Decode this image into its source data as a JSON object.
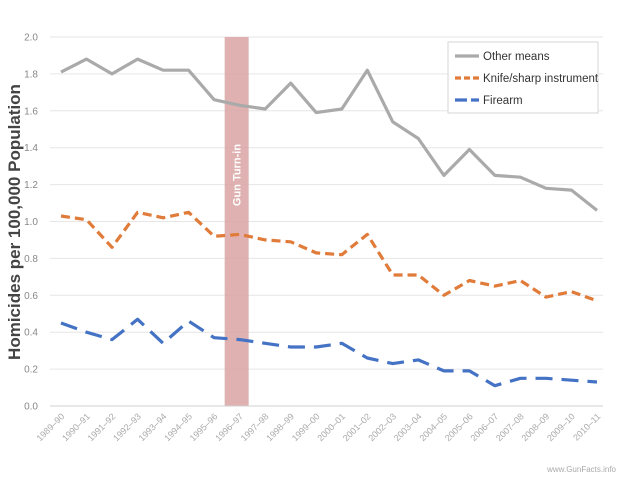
{
  "chart_data": {
    "type": "line",
    "title": "",
    "xlabel": "",
    "ylabel": "Homicides per 100,000 Population",
    "ylim": [
      0,
      2.0
    ],
    "yticks": [
      "0.0",
      "0.2",
      "0.4",
      "0.6",
      "0.8",
      "1.0",
      "1.2",
      "1.4",
      "1.6",
      "1.8",
      "2.0"
    ],
    "grid": true,
    "categories": [
      "1989–90",
      "1990–91",
      "1991–92",
      "1992–93",
      "1993–94",
      "1994–95",
      "1995–96",
      "1996–97",
      "1997–98",
      "1998–99",
      "1999–00",
      "2000–01",
      "2001–02",
      "2002–03",
      "2003–04",
      "2004–05",
      "2005–06",
      "2006–07",
      "2007–08",
      "2008–09",
      "2009–10",
      "2010–11"
    ],
    "series": [
      {
        "name": "Other means",
        "color": "#aaaaaa",
        "style": "solid",
        "values": [
          1.81,
          1.88,
          1.8,
          1.88,
          1.82,
          1.82,
          1.66,
          1.63,
          1.61,
          1.75,
          1.59,
          1.61,
          1.82,
          1.54,
          1.45,
          1.25,
          1.39,
          1.25,
          1.24,
          1.18,
          1.17,
          1.06
        ]
      },
      {
        "name": "Knife/sharp instrument",
        "color": "#e07b39",
        "style": "dashed",
        "values": [
          1.03,
          1.01,
          0.86,
          1.05,
          1.02,
          1.05,
          0.92,
          0.93,
          0.9,
          0.89,
          0.83,
          0.82,
          0.93,
          0.71,
          0.71,
          0.6,
          0.68,
          0.65,
          0.68,
          0.59,
          0.62,
          0.57
        ]
      },
      {
        "name": "Firearm",
        "color": "#4472c4",
        "style": "long-dashed",
        "values": [
          0.45,
          0.4,
          0.36,
          0.47,
          0.34,
          0.46,
          0.37,
          0.36,
          0.34,
          0.32,
          0.32,
          0.34,
          0.26,
          0.23,
          0.25,
          0.19,
          0.19,
          0.11,
          0.15,
          0.15,
          0.14,
          0.13
        ]
      }
    ],
    "legend": {
      "position": "top-right"
    },
    "annotation": {
      "text": "Gun Turn-in",
      "category": "1996–97",
      "color": "#d9a3a3"
    },
    "watermark": "www.GunFacts.info"
  }
}
